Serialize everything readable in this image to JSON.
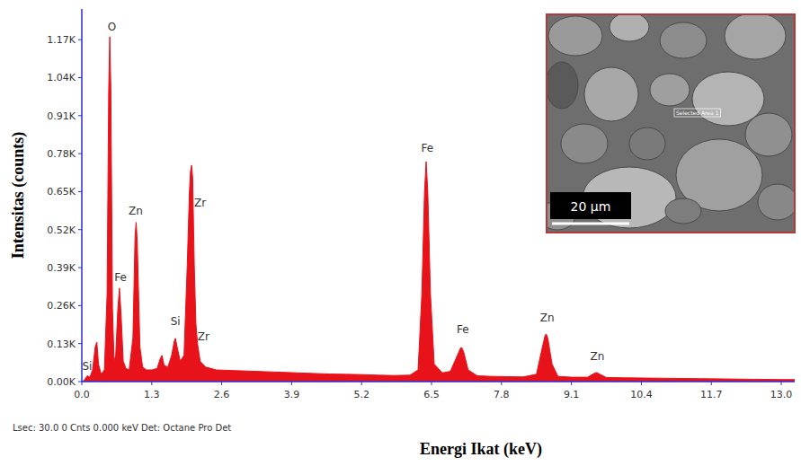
{
  "chart_data": {
    "type": "area",
    "x_label": "Energi Ikat (keV)",
    "y_label": "Intensitas (counts)",
    "footer": "Lsec: 30.0 0 Cnts  0.000 keV Det: Octane Pro Det",
    "color": "#e8121a",
    "grid": false,
    "xlim": [
      0,
      13.25
    ],
    "ylim": [
      0,
      1275
    ],
    "xticks": [
      {
        "value": 0,
        "label": "0.0"
      },
      1.3,
      2.6,
      3.9,
      5.2,
      6.5,
      7.8,
      9.1,
      10.4,
      11.7,
      {
        "value": 13,
        "label": "13.0"
      }
    ],
    "yticks": [
      {
        "value": 0,
        "label": "0.00K"
      },
      {
        "value": 130,
        "label": "0.13K"
      },
      {
        "value": 260,
        "label": "0.26K"
      },
      {
        "value": 390,
        "label": "0.39K"
      },
      {
        "value": 520,
        "label": "0.52K"
      },
      {
        "value": 650,
        "label": "0.65K"
      },
      {
        "value": 780,
        "label": "0.78K"
      },
      {
        "value": 910,
        "label": "0.91K"
      },
      {
        "value": 1040,
        "label": "1.04K"
      },
      {
        "value": 1170,
        "label": "1.17K"
      }
    ],
    "x": [
      0.0,
      0.05,
      0.1,
      0.15,
      0.2,
      0.25,
      0.28,
      0.31,
      0.36,
      0.42,
      0.47,
      0.5,
      0.52,
      0.54,
      0.57,
      0.6,
      0.63,
      0.67,
      0.7,
      0.73,
      0.77,
      0.82,
      0.88,
      0.95,
      0.99,
      1.01,
      1.03,
      1.08,
      1.13,
      1.2,
      1.3,
      1.4,
      1.46,
      1.49,
      1.53,
      1.6,
      1.67,
      1.72,
      1.74,
      1.77,
      1.83,
      1.9,
      1.96,
      2.0,
      2.02,
      2.04,
      2.06,
      2.09,
      2.12,
      2.15,
      2.2,
      2.3,
      2.5,
      2.8,
      3.1,
      3.4,
      3.7,
      4.0,
      4.3,
      4.6,
      4.9,
      5.2,
      5.5,
      5.8,
      6.1,
      6.25,
      6.32,
      6.37,
      6.4,
      6.43,
      6.48,
      6.55,
      6.7,
      6.85,
      6.98,
      7.04,
      7.06,
      7.1,
      7.18,
      7.35,
      7.6,
      7.9,
      8.2,
      8.45,
      8.55,
      8.61,
      8.63,
      8.66,
      8.74,
      8.85,
      9.1,
      9.4,
      9.52,
      9.57,
      9.62,
      9.75,
      10.1,
      10.5,
      11.0,
      11.5,
      12.0,
      12.5,
      13.0,
      13.25
    ],
    "values": [
      0,
      5,
      20,
      15,
      40,
      120,
      135,
      60,
      25,
      40,
      300,
      1000,
      1180,
      1000,
      250,
      70,
      90,
      250,
      320,
      230,
      70,
      45,
      40,
      150,
      500,
      545,
      480,
      120,
      50,
      40,
      40,
      45,
      80,
      90,
      55,
      50,
      90,
      140,
      148,
      120,
      70,
      90,
      400,
      650,
      720,
      740,
      700,
      400,
      200,
      130,
      70,
      50,
      40,
      38,
      36,
      34,
      32,
      30,
      28,
      26,
      25,
      24,
      22,
      21,
      22,
      40,
      300,
      650,
      753,
      650,
      300,
      60,
      30,
      35,
      90,
      115,
      117,
      100,
      40,
      20,
      18,
      17,
      16,
      25,
      110,
      158,
      163,
      150,
      60,
      18,
      15,
      15,
      28,
      31,
      26,
      14,
      13,
      12,
      11,
      10,
      9,
      8,
      7,
      7
    ],
    "annotations": [
      {
        "text": "Si",
        "x": 0.1,
        "y": 40
      },
      {
        "text": "O",
        "x": 0.56,
        "y": 1200
      },
      {
        "text": "Fe",
        "x": 0.72,
        "y": 345
      },
      {
        "text": "Zn",
        "x": 1.0,
        "y": 570
      },
      {
        "text": "Zr",
        "x": 2.2,
        "y": 600
      },
      {
        "text": "Si",
        "x": 1.74,
        "y": 195
      },
      {
        "text": "Zr",
        "x": 2.26,
        "y": 140
      },
      {
        "text": "Fe",
        "x": 6.42,
        "y": 785
      },
      {
        "text": "Fe",
        "x": 7.08,
        "y": 165
      },
      {
        "text": "Zn",
        "x": 8.65,
        "y": 205
      },
      {
        "text": "Zn",
        "x": 9.58,
        "y": 75
      }
    ],
    "inset": {
      "scale_bar": "20 μm",
      "area_label": "Selected Area 1"
    }
  }
}
